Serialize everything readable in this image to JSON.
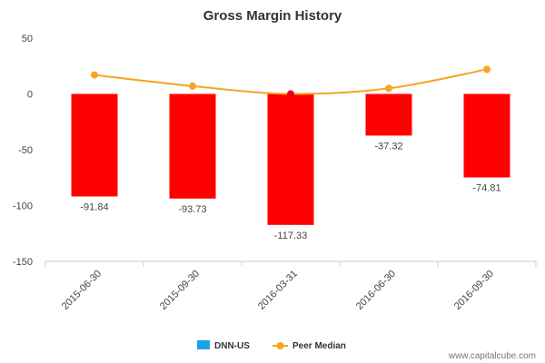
{
  "chart_data": {
    "type": "bar",
    "title": "Gross Margin History",
    "xlabel": "",
    "ylabel": "",
    "categories": [
      "2015-06-30",
      "2015-09-30",
      "2016-03-31",
      "2016-06-30",
      "2016-09-30"
    ],
    "series": [
      {
        "name": "DNN-US",
        "kind": "bar",
        "values": [
          -91.84,
          -93.73,
          -117.33,
          -37.32,
          -74.81
        ],
        "color": "#ff0000",
        "legend_color": "#1aa3e8"
      },
      {
        "name": "Peer Median",
        "kind": "line",
        "values": [
          17,
          7,
          0,
          5,
          22
        ],
        "color": "#f5a623"
      }
    ],
    "data_labels": [
      "-91.84",
      "-93.73",
      "-117.33",
      "-37.32",
      "-74.81"
    ],
    "y_ticks": [
      "50",
      "0",
      "-50",
      "-100",
      "-150"
    ],
    "y_tick_values": [
      50,
      0,
      -50,
      -100,
      -150
    ],
    "ylim": [
      -150,
      50
    ],
    "grid": false,
    "legend_position": "bottom-center"
  },
  "watermark": "www.capitalcube.com"
}
